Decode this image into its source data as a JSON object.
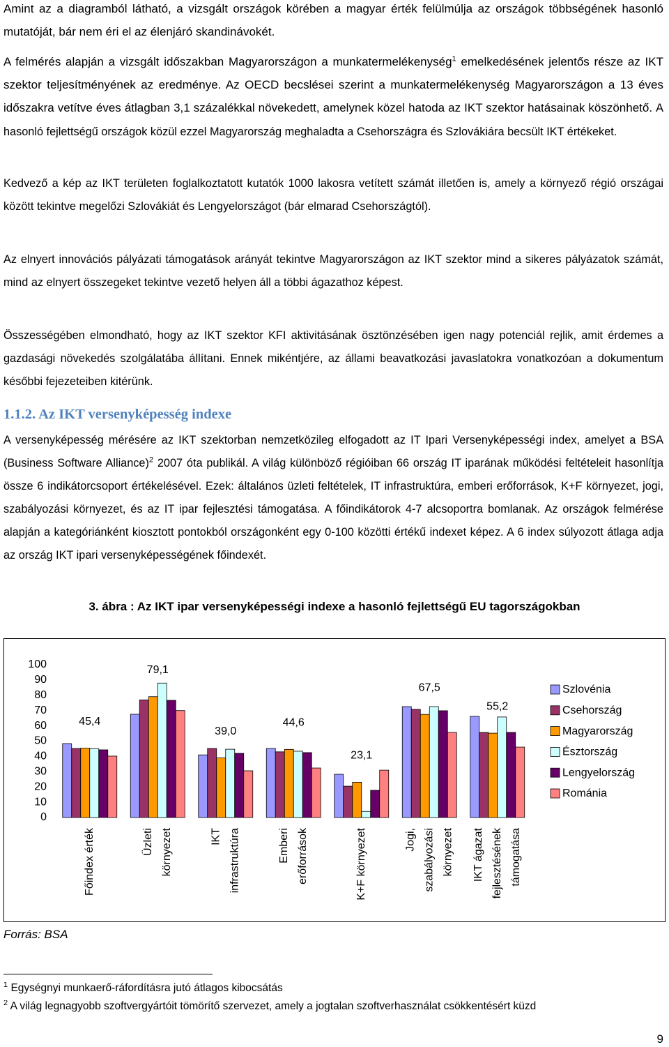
{
  "paragraphs": [
    {
      "text": "Amint az a diagramból látható, a vizsgált országok körében a magyar érték felülmúlja az országok többségének hasonló mutatóját, bár nem éri el az élenjáró skandinávokét."
    },
    {
      "text": "A felmérés alapján a vizsgált időszakban Magyarországon a munkatermelékenység",
      "footnote_ref": "1",
      "text_after": "emelkedésének jelentős része az IKT szektor teljesítményének az eredménye. Az OECD becslései szerint a munkatermelékenység Magyarországon a 13 éves időszakra vetítve éves átlagban 3,1 százalékkal növekedett, amelynek közel hatoda az IKT szektor hatásainak köszönhető.",
      "text_end": "A hasonló fejlettségű országok közül ezzel Magyarország meghaladta a Csehországra és Szlovákiára becsült IKT értékeket."
    },
    {
      "text": "Kedvező a kép az IKT területen foglalkoztatott kutatók 1000 lakosra vetített számát illetően is, amely a környező régió országai között tekintve megelőzi Szlovákiát és Lengyelországot (bár elmarad Csehországtól)."
    },
    {
      "text": "Az elnyert innovációs pályázati támogatások arányát tekintve Magyarországon az IKT szektor mind a sikeres pályázatok számát, mind az elnyert összegeket tekintve vezető helyen áll a többi ágazathoz képest."
    },
    {
      "text": "Összességében elmondható, hogy az IKT szektor KFI aktivitásának ösztönzésében igen nagy potenciál rejlik, amit érdemes a gazdasági növekedés szolgálatába állítani. Ennek mikéntjére, az állami beavatkozási javaslatokra vonatkozóan a dokumentum későbbi fejezeteiben kitérünk."
    }
  ],
  "section": {
    "number": "1.1.2.",
    "title": "Az IKT versenyképesség indexe",
    "text": "A versenyképesség mérésére az IKT szektorban nemzetközileg elfogadott az IT Ipari Versenyképességi index, amelyet a BSA (Business Software Alliance)",
    "footnote_ref": "2",
    "text_after": "2007 óta publikál. A világ különböző régióiban 66 ország IT iparának működési feltételeit hasonlítja össze 6 indikátorcsoport értékelésével. Ezek: általános üzleti feltételek, IT infrastruktúra, emberi erőforrások, K+F környezet, jogi, szabályozási környezet, és az IT ipar fejlesztési támogatása. A főindikátorok 4-7 alcsoportra bomlanak. Az országok felmérése alapján a kategóriánként kiosztott pontokból országonként egy 0-100 közötti értékű indexet képez. A 6 index súlyozott átlaga adja az ország IKT ipari versenyképességének főindexét."
  },
  "figure": {
    "caption": "3. ábra : Az IKT ipar versenyképességi indexe a hasonló fejlettségű EU tagországokban",
    "source": "Forrás: BSA"
  },
  "chart_data": {
    "type": "bar",
    "categories": [
      [
        "Főindex érték"
      ],
      [
        "Üzleti",
        "környezet"
      ],
      [
        "IKT",
        "infrastruktúra"
      ],
      [
        "Emberi",
        "erőforrások"
      ],
      [
        "K+F környezet"
      ],
      [
        "Jogi,",
        "szabályozási",
        "környezet"
      ],
      [
        "IKT ágazat",
        "fejlesztésének",
        "támogatása"
      ]
    ],
    "ylim": [
      0,
      100
    ],
    "yticks": [
      0,
      10,
      20,
      30,
      40,
      50,
      60,
      70,
      80,
      90,
      100
    ],
    "grid": false,
    "legend": "right",
    "series": [
      {
        "name": "Szlovénia",
        "color": "#9999ff",
        "values": [
          48.4,
          67.6,
          41,
          45.2,
          28.3,
          72.6,
          66.2
        ]
      },
      {
        "name": "Csehország",
        "color": "#993366",
        "values": [
          45.2,
          77,
          45.2,
          43,
          20.5,
          70.8,
          55.7
        ]
      },
      {
        "name": "Magyarország",
        "color": "#ff9900",
        "values": [
          45.4,
          79.1,
          39.0,
          44.6,
          23.1,
          67.5,
          55.2
        ],
        "value_labels": [
          "45,4",
          "79,1",
          "39,0",
          "44,6",
          "23,1",
          "67,5",
          "55,2"
        ]
      },
      {
        "name": "Észtország",
        "color": "#ccffff",
        "values": [
          45,
          88,
          44.7,
          43.4,
          4,
          72.6,
          65.8
        ]
      },
      {
        "name": "Lengyelország",
        "color": "#660066",
        "values": [
          44.3,
          76.7,
          42,
          42.5,
          17.8,
          69.9,
          55.7
        ]
      },
      {
        "name": "Románia",
        "color": "#ff8080",
        "values": [
          40.2,
          70,
          30.6,
          32.4,
          31,
          55.7,
          46.1
        ]
      }
    ]
  },
  "footnotes": [
    {
      "marker": "1",
      "text": "Egységnyi munkaerő-ráfordításra jutó átlagos kibocsátás"
    },
    {
      "marker": "2",
      "text": "A világ legnagyobb szoftvergyártóit tömörítő szervezet, amely a jogtalan szoftverhasználat csökkentésért küzd"
    }
  ],
  "page_number": "9"
}
